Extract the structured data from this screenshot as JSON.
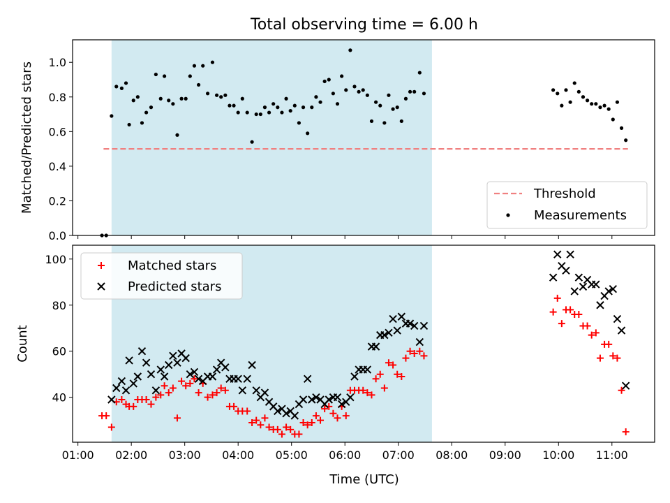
{
  "figure": {
    "title": "Total observing time = 6.00 h",
    "xlabel": "Time (UTC)",
    "shaded_span": {
      "start_hour": 1.63,
      "end_hour": 7.63,
      "color": "#add8e6"
    }
  },
  "chart_data": [
    {
      "type": "scatter",
      "ylabel": "Matched/Predicted stars",
      "xlim": [
        0.9,
        11.8
      ],
      "ylim": [
        0,
        1.13
      ],
      "yticks": [
        "0.0",
        "0.2",
        "0.4",
        "0.6",
        "0.8",
        "1.0"
      ],
      "ytick_values": [
        0,
        0.2,
        0.4,
        0.6,
        0.8,
        1.0
      ],
      "legend_position": "lower-right",
      "threshold": {
        "name": "Threshold",
        "value": 0.5,
        "x": [
          1.48,
          11.3
        ],
        "color": "#f08080",
        "style": "dashed"
      },
      "measurements": {
        "name": "Measurements",
        "color": "#000000",
        "points": [
          [
            1.45,
            0.0
          ],
          [
            1.53,
            0.0
          ],
          [
            1.63,
            0.69
          ],
          [
            1.72,
            0.86
          ],
          [
            1.82,
            0.85
          ],
          [
            1.9,
            0.88
          ],
          [
            1.96,
            0.64
          ],
          [
            2.04,
            0.78
          ],
          [
            2.12,
            0.8
          ],
          [
            2.2,
            0.65
          ],
          [
            2.28,
            0.71
          ],
          [
            2.37,
            0.74
          ],
          [
            2.46,
            0.93
          ],
          [
            2.55,
            0.79
          ],
          [
            2.62,
            0.92
          ],
          [
            2.7,
            0.78
          ],
          [
            2.78,
            0.76
          ],
          [
            2.86,
            0.58
          ],
          [
            2.94,
            0.79
          ],
          [
            3.02,
            0.79
          ],
          [
            3.1,
            0.92
          ],
          [
            3.18,
            0.98
          ],
          [
            3.26,
            0.87
          ],
          [
            3.34,
            0.98
          ],
          [
            3.43,
            0.82
          ],
          [
            3.52,
            1.0
          ],
          [
            3.6,
            0.81
          ],
          [
            3.68,
            0.8
          ],
          [
            3.76,
            0.81
          ],
          [
            3.84,
            0.75
          ],
          [
            3.92,
            0.75
          ],
          [
            4.0,
            0.71
          ],
          [
            4.08,
            0.79
          ],
          [
            4.17,
            0.71
          ],
          [
            4.26,
            0.54
          ],
          [
            4.34,
            0.7
          ],
          [
            4.42,
            0.7
          ],
          [
            4.5,
            0.74
          ],
          [
            4.58,
            0.71
          ],
          [
            4.66,
            0.76
          ],
          [
            4.74,
            0.74
          ],
          [
            4.82,
            0.71
          ],
          [
            4.9,
            0.79
          ],
          [
            4.98,
            0.72
          ],
          [
            5.06,
            0.75
          ],
          [
            5.14,
            0.65
          ],
          [
            5.22,
            0.74
          ],
          [
            5.3,
            0.59
          ],
          [
            5.38,
            0.74
          ],
          [
            5.46,
            0.8
          ],
          [
            5.54,
            0.77
          ],
          [
            5.62,
            0.89
          ],
          [
            5.7,
            0.9
          ],
          [
            5.78,
            0.82
          ],
          [
            5.86,
            0.76
          ],
          [
            5.94,
            0.92
          ],
          [
            6.02,
            0.84
          ],
          [
            6.1,
            1.07
          ],
          [
            6.18,
            0.86
          ],
          [
            6.26,
            0.83
          ],
          [
            6.34,
            0.84
          ],
          [
            6.42,
            0.81
          ],
          [
            6.5,
            0.66
          ],
          [
            6.58,
            0.77
          ],
          [
            6.66,
            0.75
          ],
          [
            6.74,
            0.65
          ],
          [
            6.82,
            0.81
          ],
          [
            6.9,
            0.73
          ],
          [
            6.98,
            0.74
          ],
          [
            7.06,
            0.66
          ],
          [
            7.14,
            0.79
          ],
          [
            7.22,
            0.83
          ],
          [
            7.3,
            0.83
          ],
          [
            7.4,
            0.94
          ],
          [
            7.48,
            0.82
          ],
          [
            9.9,
            0.84
          ],
          [
            9.98,
            0.82
          ],
          [
            10.06,
            0.75
          ],
          [
            10.14,
            0.84
          ],
          [
            10.22,
            0.77
          ],
          [
            10.3,
            0.88
          ],
          [
            10.38,
            0.83
          ],
          [
            10.46,
            0.8
          ],
          [
            10.54,
            0.78
          ],
          [
            10.62,
            0.76
          ],
          [
            10.7,
            0.76
          ],
          [
            10.78,
            0.74
          ],
          [
            10.86,
            0.75
          ],
          [
            10.94,
            0.73
          ],
          [
            11.02,
            0.67
          ],
          [
            11.1,
            0.77
          ],
          [
            11.18,
            0.62
          ],
          [
            11.26,
            0.55
          ]
        ]
      }
    },
    {
      "type": "scatter",
      "ylabel": "Count",
      "xlim": [
        0.9,
        11.8
      ],
      "ylim": [
        20.5,
        106
      ],
      "yticks": [
        "40",
        "60",
        "80",
        "100"
      ],
      "ytick_values": [
        40,
        60,
        80,
        100
      ],
      "xtick_labels": [
        "01:00",
        "02:00",
        "03:00",
        "04:00",
        "05:00",
        "06:00",
        "07:00",
        "08:00",
        "09:00",
        "10:00",
        "11:00"
      ],
      "xtick_values": [
        1,
        2,
        3,
        4,
        5,
        6,
        7,
        8,
        9,
        10,
        11
      ],
      "legend_position": "upper-left",
      "series": [
        {
          "name": "Matched stars",
          "marker": "+",
          "color": "#ff0000",
          "points": [
            [
              1.45,
              32
            ],
            [
              1.53,
              32
            ],
            [
              1.63,
              27
            ],
            [
              1.72,
              38
            ],
            [
              1.82,
              39
            ],
            [
              1.9,
              37
            ],
            [
              1.96,
              36
            ],
            [
              2.04,
              36
            ],
            [
              2.12,
              39
            ],
            [
              2.2,
              39
            ],
            [
              2.28,
              39
            ],
            [
              2.37,
              37
            ],
            [
              2.46,
              40
            ],
            [
              2.55,
              41
            ],
            [
              2.62,
              45
            ],
            [
              2.7,
              42
            ],
            [
              2.78,
              44
            ],
            [
              2.86,
              31
            ],
            [
              2.94,
              47
            ],
            [
              3.02,
              45
            ],
            [
              3.1,
              46
            ],
            [
              3.18,
              48
            ],
            [
              3.26,
              42
            ],
            [
              3.34,
              46
            ],
            [
              3.43,
              40
            ],
            [
              3.52,
              41
            ],
            [
              3.6,
              42
            ],
            [
              3.68,
              44
            ],
            [
              3.76,
              43
            ],
            [
              3.84,
              36
            ],
            [
              3.92,
              36
            ],
            [
              4.0,
              34
            ],
            [
              4.08,
              34
            ],
            [
              4.17,
              34
            ],
            [
              4.26,
              29
            ],
            [
              4.34,
              30
            ],
            [
              4.42,
              28
            ],
            [
              4.5,
              31
            ],
            [
              4.58,
              27
            ],
            [
              4.66,
              26
            ],
            [
              4.74,
              26
            ],
            [
              4.82,
              24
            ],
            [
              4.9,
              27
            ],
            [
              4.98,
              26
            ],
            [
              5.06,
              24
            ],
            [
              5.14,
              24
            ],
            [
              5.22,
              29
            ],
            [
              5.3,
              28
            ],
            [
              5.38,
              29
            ],
            [
              5.46,
              32
            ],
            [
              5.54,
              30
            ],
            [
              5.62,
              35
            ],
            [
              5.7,
              36
            ],
            [
              5.78,
              33
            ],
            [
              5.86,
              31
            ],
            [
              5.94,
              36
            ],
            [
              6.02,
              32
            ],
            [
              6.1,
              43
            ],
            [
              6.18,
              43
            ],
            [
              6.26,
              43
            ],
            [
              6.34,
              43
            ],
            [
              6.42,
              42
            ],
            [
              6.5,
              41
            ],
            [
              6.58,
              48
            ],
            [
              6.66,
              50
            ],
            [
              6.74,
              44
            ],
            [
              6.82,
              55
            ],
            [
              6.9,
              54
            ],
            [
              6.98,
              50
            ],
            [
              7.06,
              49
            ],
            [
              7.14,
              57
            ],
            [
              7.22,
              60
            ],
            [
              7.3,
              59
            ],
            [
              7.4,
              60
            ],
            [
              7.48,
              58
            ],
            [
              9.9,
              77
            ],
            [
              9.98,
              83
            ],
            [
              10.06,
              72
            ],
            [
              10.14,
              78
            ],
            [
              10.22,
              78
            ],
            [
              10.3,
              76
            ],
            [
              10.38,
              76
            ],
            [
              10.46,
              71
            ],
            [
              10.54,
              71
            ],
            [
              10.62,
              67
            ],
            [
              10.7,
              68
            ],
            [
              10.78,
              57
            ],
            [
              10.86,
              63
            ],
            [
              10.94,
              63
            ],
            [
              11.02,
              58
            ],
            [
              11.1,
              57
            ],
            [
              11.18,
              43
            ],
            [
              11.26,
              25
            ]
          ]
        },
        {
          "name": "Predicted stars",
          "marker": "x",
          "color": "#000000",
          "points": [
            [
              1.63,
              39
            ],
            [
              1.72,
              44
            ],
            [
              1.82,
              47
            ],
            [
              1.9,
              43
            ],
            [
              1.96,
              56
            ],
            [
              2.04,
              46
            ],
            [
              2.12,
              49
            ],
            [
              2.2,
              60
            ],
            [
              2.28,
              55
            ],
            [
              2.37,
              50
            ],
            [
              2.46,
              43
            ],
            [
              2.55,
              52
            ],
            [
              2.62,
              49
            ],
            [
              2.7,
              54
            ],
            [
              2.78,
              58
            ],
            [
              2.86,
              55
            ],
            [
              2.94,
              59
            ],
            [
              3.02,
              57
            ],
            [
              3.1,
              50
            ],
            [
              3.18,
              51
            ],
            [
              3.26,
              48
            ],
            [
              3.34,
              47
            ],
            [
              3.43,
              49
            ],
            [
              3.52,
              49
            ],
            [
              3.6,
              52
            ],
            [
              3.68,
              55
            ],
            [
              3.76,
              53
            ],
            [
              3.84,
              48
            ],
            [
              3.92,
              48
            ],
            [
              4.0,
              48
            ],
            [
              4.08,
              43
            ],
            [
              4.17,
              48
            ],
            [
              4.26,
              54
            ],
            [
              4.34,
              43
            ],
            [
              4.42,
              40
            ],
            [
              4.5,
              42
            ],
            [
              4.58,
              38
            ],
            [
              4.66,
              36
            ],
            [
              4.74,
              34
            ],
            [
              4.82,
              35
            ],
            [
              4.9,
              33
            ],
            [
              4.98,
              34
            ],
            [
              5.06,
              32
            ],
            [
              5.14,
              37
            ],
            [
              5.22,
              39
            ],
            [
              5.3,
              48
            ],
            [
              5.38,
              39
            ],
            [
              5.46,
              40
            ],
            [
              5.54,
              39
            ],
            [
              5.62,
              37
            ],
            [
              5.7,
              39
            ],
            [
              5.78,
              40
            ],
            [
              5.86,
              40
            ],
            [
              5.94,
              37
            ],
            [
              6.02,
              38
            ],
            [
              6.1,
              40
            ],
            [
              6.18,
              49
            ],
            [
              6.26,
              52
            ],
            [
              6.34,
              52
            ],
            [
              6.42,
              52
            ],
            [
              6.5,
              62
            ],
            [
              6.58,
              62
            ],
            [
              6.66,
              67
            ],
            [
              6.74,
              67
            ],
            [
              6.82,
              68
            ],
            [
              6.9,
              74
            ],
            [
              6.98,
              69
            ],
            [
              7.06,
              75
            ],
            [
              7.14,
              72
            ],
            [
              7.22,
              72
            ],
            [
              7.3,
              71
            ],
            [
              7.4,
              64
            ],
            [
              7.48,
              71
            ],
            [
              9.9,
              92
            ],
            [
              9.98,
              102
            ],
            [
              10.06,
              97
            ],
            [
              10.14,
              95
            ],
            [
              10.22,
              102
            ],
            [
              10.3,
              86
            ],
            [
              10.38,
              92
            ],
            [
              10.46,
              88
            ],
            [
              10.54,
              91
            ],
            [
              10.62,
              89
            ],
            [
              10.7,
              89
            ],
            [
              10.78,
              80
            ],
            [
              10.86,
              84
            ],
            [
              10.94,
              86
            ],
            [
              11.02,
              87
            ],
            [
              11.1,
              74
            ],
            [
              11.18,
              69
            ],
            [
              11.26,
              45
            ]
          ]
        }
      ]
    }
  ]
}
